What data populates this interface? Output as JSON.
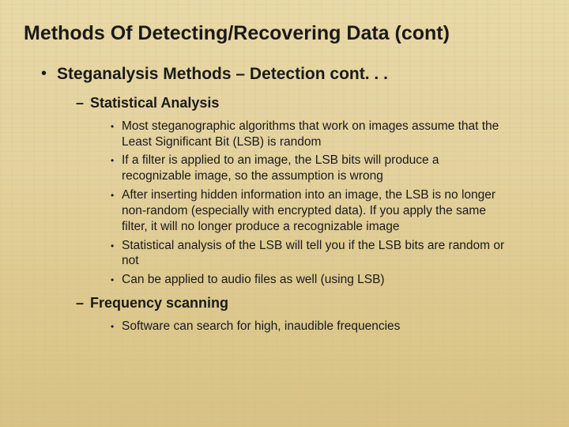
{
  "title": "Methods Of Detecting/Recovering Data (cont)",
  "lvl1": {
    "text": "Steganalysis Methods – Detection cont. . .",
    "sub": [
      {
        "text": "Statistical Analysis",
        "bullets": [
          "Most steganographic algorithms that work on images assume that the Least Significant Bit (LSB) is random",
          "If a filter is applied to an image, the LSB bits will produce a recognizable image, so the assumption is wrong",
          "After inserting hidden information into an image, the LSB is no longer non-random (especially with encrypted data). If you apply the same filter, it will no longer produce a recognizable image",
          "Statistical analysis of the LSB will tell you if the LSB bits are random or not",
          "Can be applied to audio files as well (using LSB)"
        ]
      },
      {
        "text": "Frequency scanning",
        "bullets": [
          "Software can search for high, inaudible frequencies"
        ]
      }
    ]
  }
}
